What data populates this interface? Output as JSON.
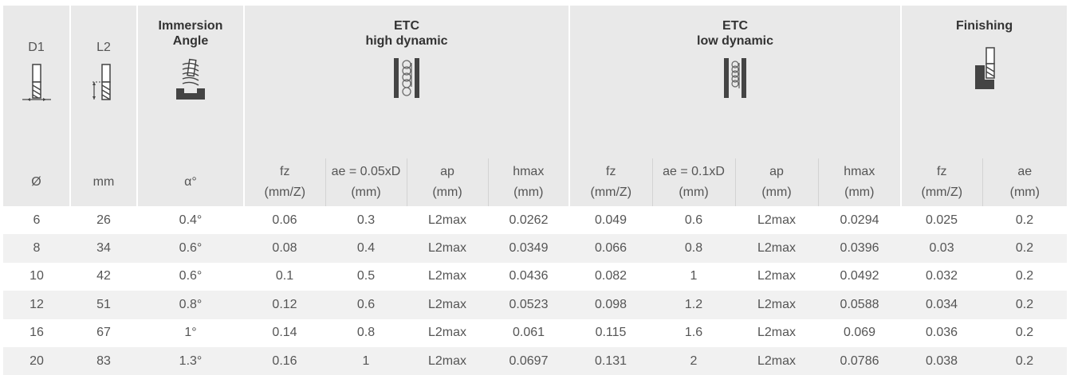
{
  "headers": {
    "d1": "D1",
    "l2": "L2",
    "immersion": [
      "Immersion",
      "Angle"
    ],
    "etc_high": [
      "ETC",
      "high dynamic"
    ],
    "etc_low": [
      "ETC",
      "low dynamic"
    ],
    "finishing": "Finishing"
  },
  "units": {
    "d1": "Ø",
    "l2": "mm",
    "angle": "α°",
    "high": [
      [
        "fz",
        "(mm/Z)"
      ],
      [
        "ae = 0.05xD",
        "(mm)"
      ],
      [
        "ap",
        "(mm)"
      ],
      [
        "hmax",
        "(mm)"
      ]
    ],
    "low": [
      [
        "fz",
        "(mm/Z)"
      ],
      [
        "ae = 0.1xD",
        "(mm)"
      ],
      [
        "ap",
        "(mm)"
      ],
      [
        "hmax",
        "(mm)"
      ]
    ],
    "fin": [
      [
        "fz",
        "(mm/Z)"
      ],
      [
        "ae",
        "(mm)"
      ]
    ]
  },
  "rows": [
    [
      "6",
      "26",
      "0.4°",
      "0.06",
      "0.3",
      "L2max",
      "0.0262",
      "0.049",
      "0.6",
      "L2max",
      "0.0294",
      "0.025",
      "0.2"
    ],
    [
      "8",
      "34",
      "0.6°",
      "0.08",
      "0.4",
      "L2max",
      "0.0349",
      "0.066",
      "0.8",
      "L2max",
      "0.0396",
      "0.03",
      "0.2"
    ],
    [
      "10",
      "42",
      "0.6°",
      "0.1",
      "0.5",
      "L2max",
      "0.0436",
      "0.082",
      "1",
      "L2max",
      "0.0492",
      "0.032",
      "0.2"
    ],
    [
      "12",
      "51",
      "0.8°",
      "0.12",
      "0.6",
      "L2max",
      "0.0523",
      "0.098",
      "1.2",
      "L2max",
      "0.0588",
      "0.034",
      "0.2"
    ],
    [
      "16",
      "67",
      "1°",
      "0.14",
      "0.8",
      "L2max",
      "0.061",
      "0.115",
      "1.6",
      "L2max",
      "0.069",
      "0.036",
      "0.2"
    ],
    [
      "20",
      "83",
      "1.3°",
      "0.16",
      "1",
      "L2max",
      "0.0697",
      "0.131",
      "2",
      "L2max",
      "0.0786",
      "0.038",
      "0.2"
    ]
  ]
}
